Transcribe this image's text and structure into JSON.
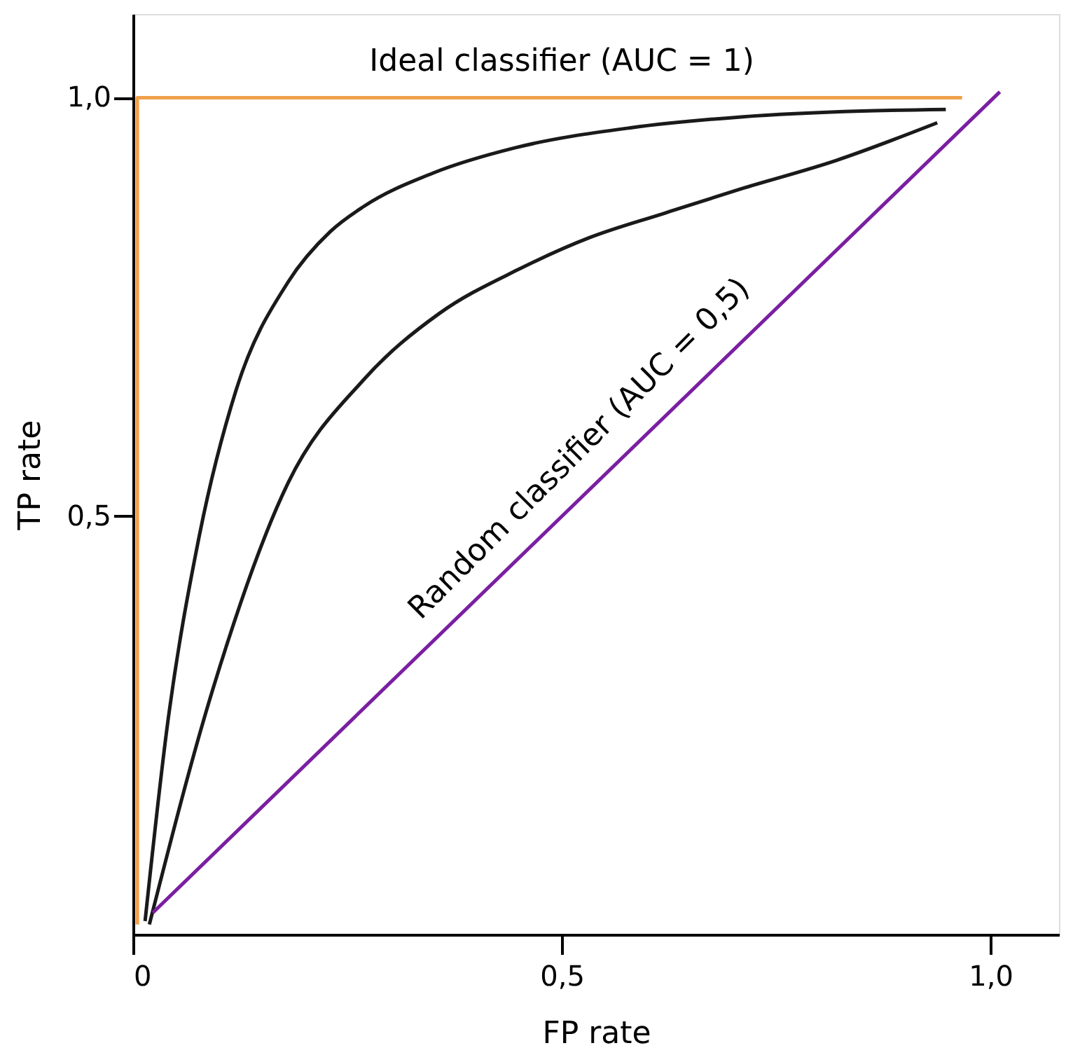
{
  "chart_data": {
    "type": "line",
    "xlabel": "FP rate",
    "ylabel": "TP rate",
    "xlim": [
      0,
      1.08
    ],
    "ylim": [
      0,
      1.1
    ],
    "xticks": [
      {
        "value": 0,
        "label": "0"
      },
      {
        "value": 0.5,
        "label": "0,5"
      },
      {
        "value": 1,
        "label": "1,0"
      }
    ],
    "yticks": [
      {
        "value": 0.5,
        "label": "0,5"
      },
      {
        "value": 1,
        "label": "1,0"
      }
    ],
    "grid": false,
    "marker": "none",
    "line_style": "solid",
    "series": [
      {
        "color": "#f0a04b",
        "x": [
          0.005,
          0.005,
          0.967
        ],
        "values": [
          0.012,
          1.0,
          1.0
        ]
      },
      {
        "color": "#1a1a1a",
        "x": [
          0.014,
          0.04,
          0.076,
          0.12,
          0.181,
          0.23,
          0.269,
          0.35,
          0.445,
          0.58,
          0.709,
          0.85,
          0.948
        ],
        "values": [
          0.016,
          0.25,
          0.47,
          0.65,
          0.78,
          0.84,
          0.87,
          0.91,
          0.94,
          0.964,
          0.977,
          0.984,
          0.986
        ]
      },
      {
        "color": "#1a1a1a",
        "x": [
          0.019,
          0.093,
          0.181,
          0.269,
          0.357,
          0.45,
          0.533,
          0.62,
          0.709,
          0.82,
          0.938
        ],
        "values": [
          0.012,
          0.293,
          0.54,
          0.663,
          0.742,
          0.795,
          0.833,
          0.862,
          0.891,
          0.925,
          0.97
        ]
      },
      {
        "color": "#7a1fa2",
        "x": [
          0.023,
          1.011
        ],
        "values": [
          0.026,
          1.007
        ]
      }
    ],
    "annotations": [
      {
        "text": "Ideal classifier (AUC = 1)",
        "x": 0.5,
        "y": 1.0
      },
      {
        "text": "Random classifier (AUC = 0,5)",
        "x": 0.55,
        "y": 0.55
      }
    ]
  }
}
